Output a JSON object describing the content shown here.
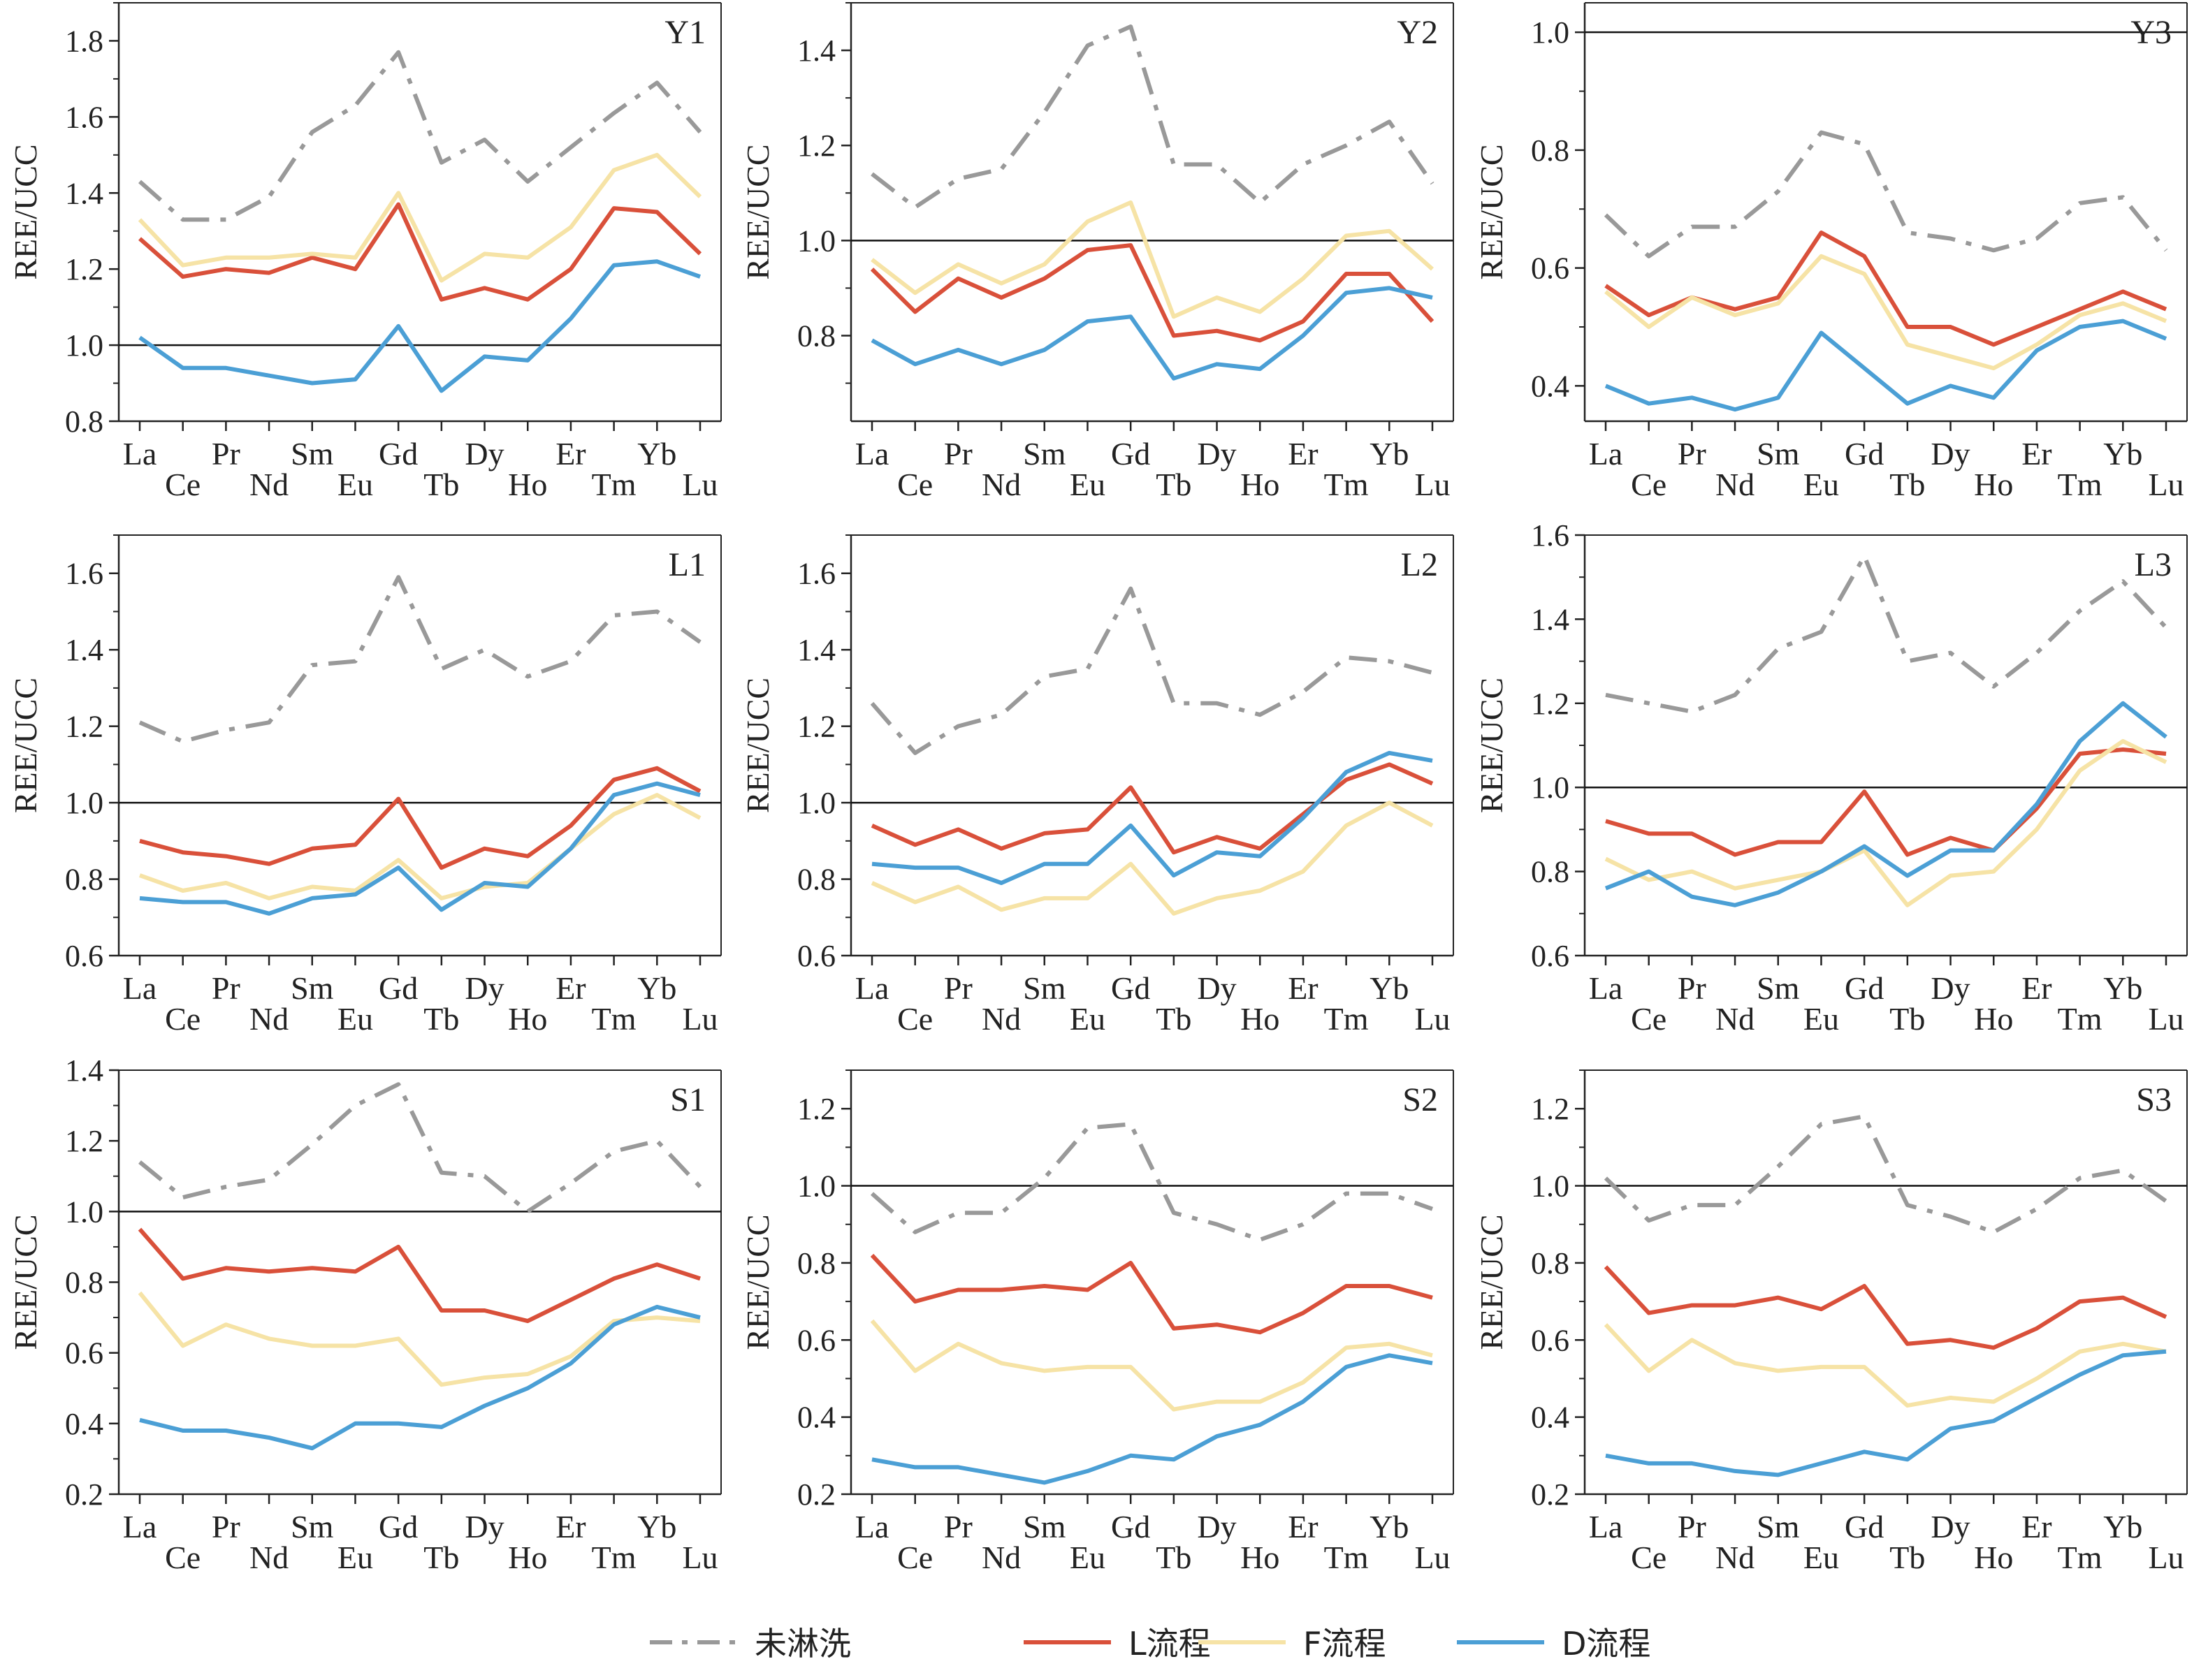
{
  "legend": [
    {
      "label": "未淋洗",
      "color": "#999999",
      "style": "dashdot"
    },
    {
      "label": "L流程",
      "color": "#d9503a",
      "style": "solid"
    },
    {
      "label": "F流程",
      "color": "#f6e3a6",
      "style": "solid"
    },
    {
      "label": "D流程",
      "color": "#4b9fd5",
      "style": "solid"
    }
  ],
  "chart_data": [
    {
      "type": "line",
      "title": "Y1",
      "ylabel": "REE/UCC",
      "ylim": [
        0.8,
        1.9
      ],
      "yticks": [
        0.8,
        1.0,
        1.2,
        1.4,
        1.6,
        1.8
      ],
      "ref_line": 1.0,
      "categories": [
        "La",
        "Ce",
        "Pr",
        "Nd",
        "Sm",
        "Eu",
        "Gd",
        "Tb",
        "Dy",
        "Ho",
        "Er",
        "Tm",
        "Yb",
        "Lu"
      ],
      "series": [
        {
          "name": "未淋洗",
          "values": [
            1.43,
            1.33,
            1.33,
            1.39,
            1.56,
            1.63,
            1.77,
            1.48,
            1.54,
            1.43,
            1.52,
            1.61,
            1.69,
            1.56
          ]
        },
        {
          "name": "L流程",
          "values": [
            1.28,
            1.18,
            1.2,
            1.19,
            1.23,
            1.2,
            1.37,
            1.12,
            1.15,
            1.12,
            1.2,
            1.36,
            1.35,
            1.24
          ]
        },
        {
          "name": "F流程",
          "values": [
            1.33,
            1.21,
            1.23,
            1.23,
            1.24,
            1.23,
            1.4,
            1.17,
            1.24,
            1.23,
            1.31,
            1.46,
            1.5,
            1.39
          ]
        },
        {
          "name": "D流程",
          "values": [
            1.02,
            0.94,
            0.94,
            0.92,
            0.9,
            0.91,
            1.05,
            0.88,
            0.97,
            0.96,
            1.07,
            1.21,
            1.22,
            1.18
          ]
        }
      ]
    },
    {
      "type": "line",
      "title": "Y2",
      "ylabel": "REE/UCC",
      "ylim": [
        0.62,
        1.5
      ],
      "yticks": [
        0.8,
        1.0,
        1.2,
        1.4
      ],
      "ref_line": 1.0,
      "categories": [
        "La",
        "Ce",
        "Pr",
        "Nd",
        "Sm",
        "Eu",
        "Gd",
        "Tb",
        "Dy",
        "Ho",
        "Er",
        "Tm",
        "Yb",
        "Lu"
      ],
      "series": [
        {
          "name": "未淋洗",
          "values": [
            1.14,
            1.07,
            1.13,
            1.15,
            1.27,
            1.41,
            1.45,
            1.16,
            1.16,
            1.08,
            1.16,
            1.2,
            1.25,
            1.12
          ]
        },
        {
          "name": "L流程",
          "values": [
            0.94,
            0.85,
            0.92,
            0.88,
            0.92,
            0.98,
            0.99,
            0.8,
            0.81,
            0.79,
            0.83,
            0.93,
            0.93,
            0.83
          ]
        },
        {
          "name": "F流程",
          "values": [
            0.96,
            0.89,
            0.95,
            0.91,
            0.95,
            1.04,
            1.08,
            0.84,
            0.88,
            0.85,
            0.92,
            1.01,
            1.02,
            0.94
          ]
        },
        {
          "name": "D流程",
          "values": [
            0.79,
            0.74,
            0.77,
            0.74,
            0.77,
            0.83,
            0.84,
            0.71,
            0.74,
            0.73,
            0.8,
            0.89,
            0.9,
            0.88
          ]
        }
      ]
    },
    {
      "type": "line",
      "title": "Y3",
      "ylabel": "REE/UCC",
      "ylim": [
        0.34,
        1.05
      ],
      "yticks": [
        0.4,
        0.6,
        0.8,
        1.0
      ],
      "ref_line": 1.0,
      "categories": [
        "La",
        "Ce",
        "Pr",
        "Nd",
        "Sm",
        "Eu",
        "Gd",
        "Tb",
        "Dy",
        "Ho",
        "Er",
        "Tm",
        "Yb",
        "Lu"
      ],
      "series": [
        {
          "name": "未淋洗",
          "values": [
            0.69,
            0.62,
            0.67,
            0.67,
            0.73,
            0.83,
            0.81,
            0.66,
            0.65,
            0.63,
            0.65,
            0.71,
            0.72,
            0.63
          ]
        },
        {
          "name": "L流程",
          "values": [
            0.57,
            0.52,
            0.55,
            0.53,
            0.55,
            0.66,
            0.62,
            0.5,
            0.5,
            0.47,
            0.5,
            0.53,
            0.56,
            0.53
          ]
        },
        {
          "name": "F流程",
          "values": [
            0.56,
            0.5,
            0.55,
            0.52,
            0.54,
            0.62,
            0.59,
            0.47,
            0.45,
            0.43,
            0.47,
            0.52,
            0.54,
            0.51
          ]
        },
        {
          "name": "D流程",
          "values": [
            0.4,
            0.37,
            0.38,
            0.36,
            0.38,
            0.49,
            0.43,
            0.37,
            0.4,
            0.38,
            0.46,
            0.5,
            0.51,
            0.48
          ]
        }
      ]
    },
    {
      "type": "line",
      "title": "L1",
      "ylabel": "REE/UCC",
      "ylim": [
        0.6,
        1.7
      ],
      "yticks": [
        0.6,
        0.8,
        1.0,
        1.2,
        1.4,
        1.6
      ],
      "ref_line": 1.0,
      "categories": [
        "La",
        "Ce",
        "Pr",
        "Nd",
        "Sm",
        "Eu",
        "Gd",
        "Tb",
        "Dy",
        "Ho",
        "Er",
        "Tm",
        "Yb",
        "Lu"
      ],
      "series": [
        {
          "name": "未淋洗",
          "values": [
            1.21,
            1.16,
            1.19,
            1.21,
            1.36,
            1.37,
            1.59,
            1.35,
            1.4,
            1.33,
            1.37,
            1.49,
            1.5,
            1.42
          ]
        },
        {
          "name": "L流程",
          "values": [
            0.9,
            0.87,
            0.86,
            0.84,
            0.88,
            0.89,
            1.01,
            0.83,
            0.88,
            0.86,
            0.94,
            1.06,
            1.09,
            1.03
          ]
        },
        {
          "name": "F流程",
          "values": [
            0.81,
            0.77,
            0.79,
            0.75,
            0.78,
            0.77,
            0.85,
            0.75,
            0.78,
            0.79,
            0.88,
            0.97,
            1.02,
            0.96
          ]
        },
        {
          "name": "D流程",
          "values": [
            0.75,
            0.74,
            0.74,
            0.71,
            0.75,
            0.76,
            0.83,
            0.72,
            0.79,
            0.78,
            0.88,
            1.02,
            1.05,
            1.02
          ]
        }
      ]
    },
    {
      "type": "line",
      "title": "L2",
      "ylabel": "REE/UCC",
      "ylim": [
        0.6,
        1.7
      ],
      "yticks": [
        0.6,
        0.8,
        1.0,
        1.2,
        1.4,
        1.6
      ],
      "ref_line": 1.0,
      "categories": [
        "La",
        "Ce",
        "Pr",
        "Nd",
        "Sm",
        "Eu",
        "Gd",
        "Tb",
        "Dy",
        "Ho",
        "Er",
        "Tm",
        "Yb",
        "Lu"
      ],
      "series": [
        {
          "name": "未淋洗",
          "values": [
            1.26,
            1.13,
            1.2,
            1.23,
            1.33,
            1.35,
            1.56,
            1.26,
            1.26,
            1.23,
            1.29,
            1.38,
            1.37,
            1.34
          ]
        },
        {
          "name": "L流程",
          "values": [
            0.94,
            0.89,
            0.93,
            0.88,
            0.92,
            0.93,
            1.04,
            0.87,
            0.91,
            0.88,
            0.97,
            1.06,
            1.1,
            1.05
          ]
        },
        {
          "name": "F流程",
          "values": [
            0.79,
            0.74,
            0.78,
            0.72,
            0.75,
            0.75,
            0.84,
            0.71,
            0.75,
            0.77,
            0.82,
            0.94,
            1.0,
            0.94
          ]
        },
        {
          "name": "D流程",
          "values": [
            0.84,
            0.83,
            0.83,
            0.79,
            0.84,
            0.84,
            0.94,
            0.81,
            0.87,
            0.86,
            0.96,
            1.08,
            1.13,
            1.11
          ]
        }
      ]
    },
    {
      "type": "line",
      "title": "L3",
      "ylabel": "REE/UCC",
      "ylim": [
        0.6,
        1.6
      ],
      "yticks": [
        0.6,
        0.8,
        1.0,
        1.2,
        1.4,
        1.6
      ],
      "ref_line": 1.0,
      "categories": [
        "La",
        "Ce",
        "Pr",
        "Nd",
        "Sm",
        "Eu",
        "Gd",
        "Tb",
        "Dy",
        "Ho",
        "Er",
        "Tm",
        "Yb",
        "Lu"
      ],
      "series": [
        {
          "name": "未淋洗",
          "values": [
            1.22,
            1.2,
            1.18,
            1.22,
            1.33,
            1.37,
            1.55,
            1.3,
            1.32,
            1.24,
            1.32,
            1.42,
            1.49,
            1.38
          ]
        },
        {
          "name": "L流程",
          "values": [
            0.92,
            0.89,
            0.89,
            0.84,
            0.87,
            0.87,
            0.99,
            0.84,
            0.88,
            0.85,
            0.95,
            1.08,
            1.09,
            1.08
          ]
        },
        {
          "name": "F流程",
          "values": [
            0.83,
            0.78,
            0.8,
            0.76,
            0.78,
            0.8,
            0.85,
            0.72,
            0.79,
            0.8,
            0.9,
            1.04,
            1.11,
            1.06
          ]
        },
        {
          "name": "D流程",
          "values": [
            0.76,
            0.8,
            0.74,
            0.72,
            0.75,
            0.8,
            0.86,
            0.79,
            0.85,
            0.85,
            0.96,
            1.11,
            1.2,
            1.12
          ]
        }
      ]
    },
    {
      "type": "line",
      "title": "S1",
      "ylabel": "REE/UCC",
      "ylim": [
        0.2,
        1.4
      ],
      "yticks": [
        0.2,
        0.4,
        0.6,
        0.8,
        1.0,
        1.2,
        1.4
      ],
      "ref_line": 1.0,
      "categories": [
        "La",
        "Ce",
        "Pr",
        "Nd",
        "Sm",
        "Eu",
        "Gd",
        "Tb",
        "Dy",
        "Ho",
        "Er",
        "Tm",
        "Yb",
        "Lu"
      ],
      "series": [
        {
          "name": "未淋洗",
          "values": [
            1.14,
            1.04,
            1.07,
            1.09,
            1.19,
            1.3,
            1.36,
            1.11,
            1.1,
            1.0,
            1.08,
            1.17,
            1.2,
            1.07
          ]
        },
        {
          "name": "L流程",
          "values": [
            0.95,
            0.81,
            0.84,
            0.83,
            0.84,
            0.83,
            0.9,
            0.72,
            0.72,
            0.69,
            0.75,
            0.81,
            0.85,
            0.81
          ]
        },
        {
          "name": "F流程",
          "values": [
            0.77,
            0.62,
            0.68,
            0.64,
            0.62,
            0.62,
            0.64,
            0.51,
            0.53,
            0.54,
            0.59,
            0.69,
            0.7,
            0.69
          ]
        },
        {
          "name": "D流程",
          "values": [
            0.41,
            0.38,
            0.38,
            0.36,
            0.33,
            0.4,
            0.4,
            0.39,
            0.45,
            0.5,
            0.57,
            0.68,
            0.73,
            0.7
          ]
        }
      ]
    },
    {
      "type": "line",
      "title": "S2",
      "ylabel": "REE/UCC",
      "ylim": [
        0.2,
        1.3
      ],
      "yticks": [
        0.2,
        0.4,
        0.6,
        0.8,
        1.0,
        1.2
      ],
      "ref_line": 1.0,
      "categories": [
        "La",
        "Ce",
        "Pr",
        "Nd",
        "Sm",
        "Eu",
        "Gd",
        "Tb",
        "Dy",
        "Ho",
        "Er",
        "Tm",
        "Yb",
        "Lu"
      ],
      "series": [
        {
          "name": "未淋洗",
          "values": [
            0.98,
            0.88,
            0.93,
            0.93,
            1.02,
            1.15,
            1.16,
            0.93,
            0.9,
            0.86,
            0.9,
            0.98,
            0.98,
            0.94
          ]
        },
        {
          "name": "L流程",
          "values": [
            0.82,
            0.7,
            0.73,
            0.73,
            0.74,
            0.73,
            0.8,
            0.63,
            0.64,
            0.62,
            0.67,
            0.74,
            0.74,
            0.71
          ]
        },
        {
          "name": "F流程",
          "values": [
            0.65,
            0.52,
            0.59,
            0.54,
            0.52,
            0.53,
            0.53,
            0.42,
            0.44,
            0.44,
            0.49,
            0.58,
            0.59,
            0.56
          ]
        },
        {
          "name": "D流程",
          "values": [
            0.29,
            0.27,
            0.27,
            0.25,
            0.23,
            0.26,
            0.3,
            0.29,
            0.35,
            0.38,
            0.44,
            0.53,
            0.56,
            0.54
          ]
        }
      ]
    },
    {
      "type": "line",
      "title": "S3",
      "ylabel": "REE/UCC",
      "ylim": [
        0.2,
        1.3
      ],
      "yticks": [
        0.2,
        0.4,
        0.6,
        0.8,
        1.0,
        1.2
      ],
      "ref_line": 1.0,
      "categories": [
        "La",
        "Ce",
        "Pr",
        "Nd",
        "Sm",
        "Eu",
        "Gd",
        "Tb",
        "Dy",
        "Ho",
        "Er",
        "Tm",
        "Yb",
        "Lu"
      ],
      "series": [
        {
          "name": "未淋洗",
          "values": [
            1.02,
            0.91,
            0.95,
            0.95,
            1.05,
            1.16,
            1.18,
            0.95,
            0.92,
            0.88,
            0.94,
            1.02,
            1.04,
            0.96
          ]
        },
        {
          "name": "L流程",
          "values": [
            0.79,
            0.67,
            0.69,
            0.69,
            0.71,
            0.68,
            0.74,
            0.59,
            0.6,
            0.58,
            0.63,
            0.7,
            0.71,
            0.66
          ]
        },
        {
          "name": "F流程",
          "values": [
            0.64,
            0.52,
            0.6,
            0.54,
            0.52,
            0.53,
            0.53,
            0.43,
            0.45,
            0.44,
            0.5,
            0.57,
            0.59,
            0.57
          ]
        },
        {
          "name": "D流程",
          "values": [
            0.3,
            0.28,
            0.28,
            0.26,
            0.25,
            0.28,
            0.31,
            0.29,
            0.37,
            0.39,
            0.45,
            0.51,
            0.56,
            0.57
          ]
        }
      ]
    }
  ]
}
